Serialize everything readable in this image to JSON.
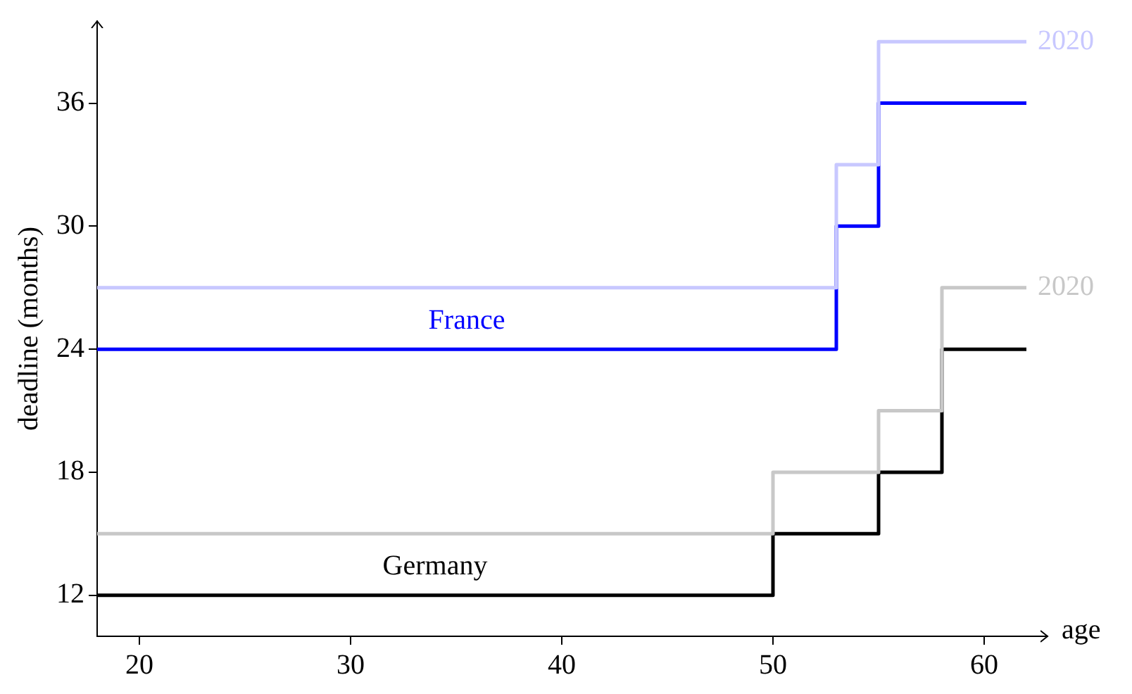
{
  "chart_data": {
    "type": "step",
    "xlabel": "age",
    "ylabel": "deadline (months)",
    "xlim": [
      18,
      63
    ],
    "ylim": [
      10,
      40
    ],
    "xticks": [
      20,
      30,
      40,
      50,
      60
    ],
    "yticks": [
      12,
      18,
      24,
      30,
      36
    ],
    "grid": false,
    "legend": false,
    "series": [
      {
        "name": "2020",
        "color": "#c8c8ff",
        "x": [
          18,
          53,
          55,
          62
        ],
        "values": [
          27,
          33,
          39,
          39
        ]
      },
      {
        "name": "2020",
        "color": "#c8c8c8",
        "x": [
          18,
          50,
          55,
          58,
          62
        ],
        "values": [
          15,
          18,
          21,
          27,
          27
        ]
      },
      {
        "name": "France",
        "color": "#0000ff",
        "x": [
          18,
          53,
          55,
          62
        ],
        "values": [
          24,
          30,
          36,
          36
        ]
      },
      {
        "name": "Germany",
        "color": "#000000",
        "x": [
          18,
          50,
          55,
          58,
          62
        ],
        "values": [
          12,
          15,
          18,
          24,
          24
        ]
      }
    ]
  }
}
